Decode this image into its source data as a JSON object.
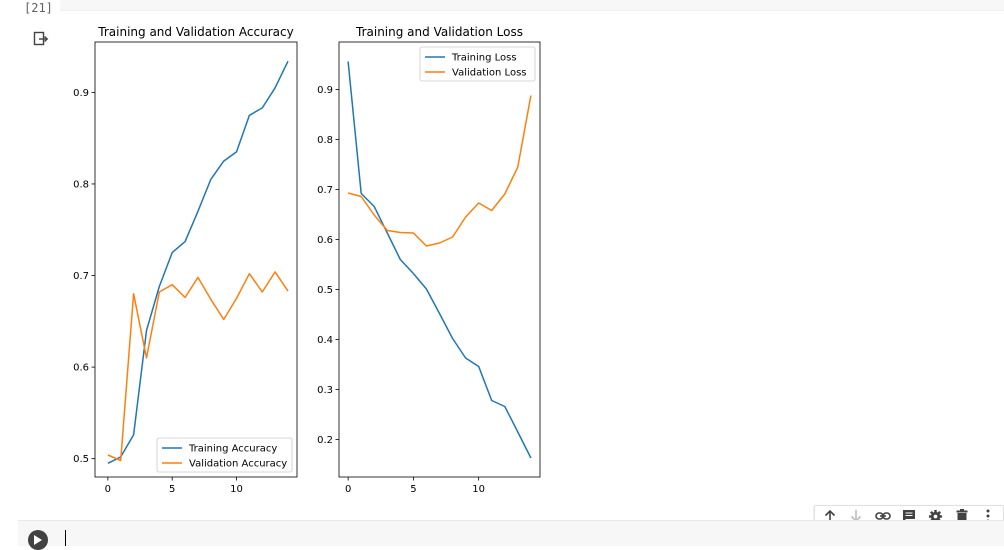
{
  "cell": {
    "execution_count": "[21]"
  },
  "output": {
    "icon": "output-redirect-icon"
  },
  "chart_data": [
    {
      "type": "line",
      "title": "Training and Validation Accuracy",
      "xlabel": "",
      "ylabel": "",
      "xlim": [
        -1,
        14.7
      ],
      "ylim": [
        0.48,
        0.955
      ],
      "xticks": [
        0,
        5,
        10
      ],
      "yticks": [
        0.5,
        0.6,
        0.7,
        0.8,
        0.9
      ],
      "grid": false,
      "legend": "lower right",
      "x": [
        0,
        1,
        2,
        3,
        4,
        5,
        6,
        7,
        8,
        9,
        10,
        11,
        12,
        13,
        14
      ],
      "series": [
        {
          "name": "Training Accuracy",
          "color": "#1f77b4",
          "values": [
            0.495,
            0.502,
            0.526,
            0.64,
            0.688,
            0.725,
            0.737,
            0.77,
            0.805,
            0.825,
            0.835,
            0.875,
            0.883,
            0.905,
            0.934
          ]
        },
        {
          "name": "Validation Accuracy",
          "color": "#ff7f0e",
          "values": [
            0.504,
            0.498,
            0.68,
            0.61,
            0.682,
            0.69,
            0.676,
            0.698,
            0.674,
            0.652,
            0.675,
            0.702,
            0.682,
            0.704,
            0.683
          ]
        }
      ]
    },
    {
      "type": "line",
      "title": "Training and Validation Loss",
      "xlabel": "",
      "ylabel": "",
      "xlim": [
        -0.7,
        14.7
      ],
      "ylim": [
        0.125,
        0.995
      ],
      "xticks": [
        0,
        5,
        10
      ],
      "yticks": [
        0.2,
        0.3,
        0.4,
        0.5,
        0.6,
        0.7,
        0.8,
        0.9
      ],
      "grid": false,
      "legend": "upper right",
      "x": [
        0,
        1,
        2,
        3,
        4,
        5,
        6,
        7,
        8,
        9,
        10,
        11,
        12,
        13,
        14
      ],
      "series": [
        {
          "name": "Training Loss",
          "color": "#1f77b4",
          "values": [
            0.956,
            0.692,
            0.666,
            0.613,
            0.56,
            0.532,
            0.501,
            0.452,
            0.402,
            0.363,
            0.346,
            0.278,
            0.266,
            0.215,
            0.163
          ]
        },
        {
          "name": "Validation Loss",
          "color": "#ff7f0e",
          "values": [
            0.693,
            0.686,
            0.649,
            0.618,
            0.614,
            0.613,
            0.587,
            0.593,
            0.605,
            0.645,
            0.673,
            0.658,
            0.691,
            0.745,
            0.888
          ]
        }
      ]
    }
  ],
  "toolbar": {
    "buttons": [
      "arrow-up-icon",
      "arrow-down-icon",
      "link-icon",
      "comment-icon",
      "gear-icon",
      "trash-icon",
      "more-vert-icon"
    ]
  },
  "new_cell": {
    "run_icon": "play-icon"
  }
}
